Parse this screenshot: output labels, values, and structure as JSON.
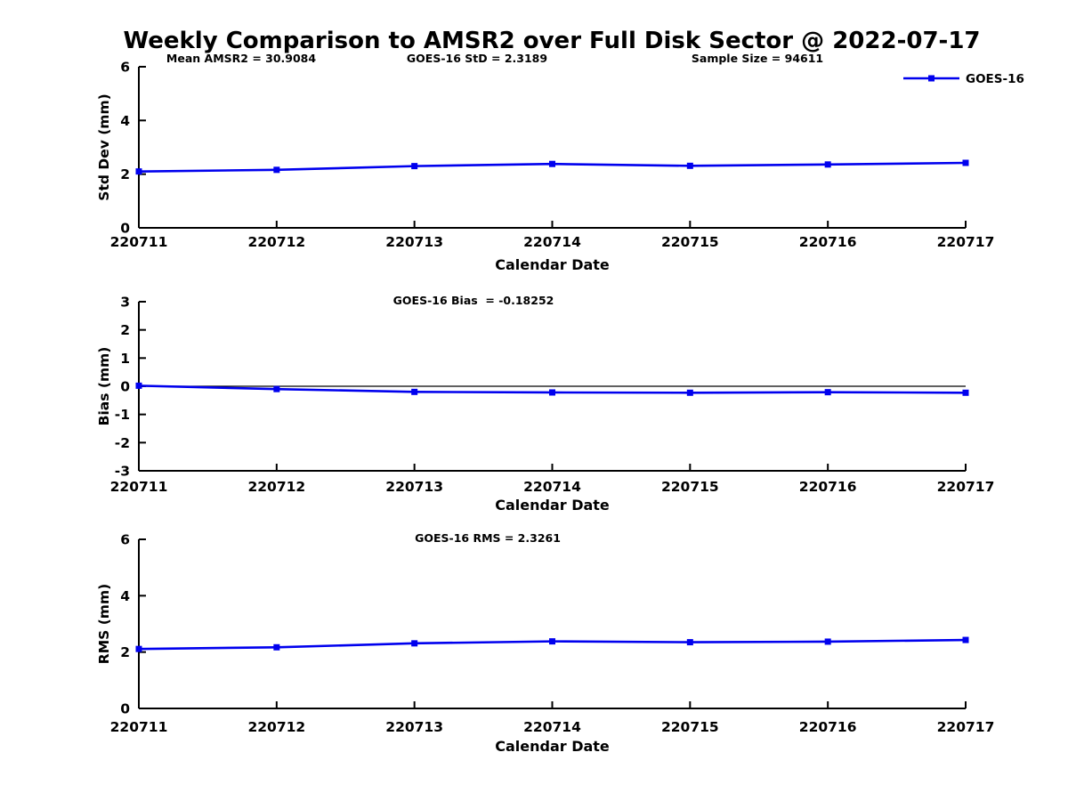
{
  "title": "Weekly Comparison to AMSR2 over Full Disk Sector @ 2022-07-17",
  "colors": {
    "series": "#0000ee",
    "axis": "#000000",
    "text": "#000000",
    "zero_line": "#000000"
  },
  "chart_data": [
    {
      "type": "line",
      "ylabel": "Std Dev (mm)",
      "xlabel": "Calendar Date",
      "categories": [
        "220711",
        "220712",
        "220713",
        "220714",
        "220715",
        "220716",
        "220717"
      ],
      "series": [
        {
          "name": "GOES-16",
          "values": [
            2.1,
            2.16,
            2.3,
            2.38,
            2.31,
            2.36,
            2.42
          ]
        }
      ],
      "ylim": [
        0,
        6
      ],
      "yticks": [
        0,
        2,
        4,
        6
      ],
      "grid": false,
      "zero_line": false,
      "legend": {
        "label": "GOES-16",
        "position": "top-right"
      },
      "annotations": [
        {
          "text": "Mean AMSR2 = 30.9084",
          "cx": 271
        },
        {
          "text": "GOES-16 StD = 2.3189",
          "cx": 536
        },
        {
          "text": "Sample Size = 94611",
          "cx": 851
        }
      ]
    },
    {
      "type": "line",
      "ylabel": "Bias (mm)",
      "xlabel": "Calendar Date",
      "categories": [
        "220711",
        "220712",
        "220713",
        "220714",
        "220715",
        "220716",
        "220717"
      ],
      "series": [
        {
          "name": "GOES-16",
          "values": [
            0.02,
            -0.1,
            -0.2,
            -0.22,
            -0.23,
            -0.21,
            -0.23
          ]
        }
      ],
      "ylim": [
        -3,
        3
      ],
      "yticks": [
        -3,
        -2,
        -1,
        0,
        1,
        2,
        3
      ],
      "grid": false,
      "zero_line": true,
      "legend": null,
      "annotations": [
        {
          "text": "GOES-16 Bias  = -0.18252",
          "cx": 532
        }
      ]
    },
    {
      "type": "line",
      "ylabel": "RMS (mm)",
      "xlabel": "Calendar Date",
      "categories": [
        "220711",
        "220712",
        "220713",
        "220714",
        "220715",
        "220716",
        "220717"
      ],
      "series": [
        {
          "name": "GOES-16",
          "values": [
            2.11,
            2.17,
            2.31,
            2.38,
            2.35,
            2.37,
            2.43
          ]
        }
      ],
      "ylim": [
        0,
        6
      ],
      "yticks": [
        0,
        2,
        4,
        6
      ],
      "grid": false,
      "zero_line": false,
      "legend": null,
      "annotations": [
        {
          "text": "GOES-16 RMS = 2.3261",
          "cx": 548
        }
      ]
    }
  ]
}
